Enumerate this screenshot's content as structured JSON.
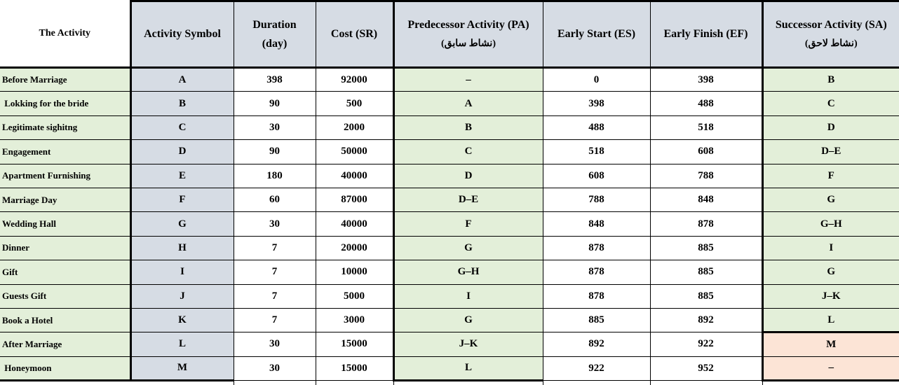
{
  "colors": {
    "cell_green": "#e3efd9",
    "cell_blue_gray": "#d6dce4",
    "cell_orange_highlight": "#fce4d6",
    "border": "#000000"
  },
  "table": {
    "columns": [
      {
        "key": "activity",
        "label": "The Activity",
        "sub": ""
      },
      {
        "key": "symbol",
        "label": "Activity Symbol",
        "sub": ""
      },
      {
        "key": "duration",
        "label": "Duration",
        "sub": "(day)"
      },
      {
        "key": "cost",
        "label": "Cost (SR)",
        "sub": ""
      },
      {
        "key": "predecessor",
        "label": "Predecessor Activity (PA)",
        "sub": "(نشاط سابق)"
      },
      {
        "key": "es",
        "label": "Early Start (ES)",
        "sub": ""
      },
      {
        "key": "ef",
        "label": "Early Finish (EF)",
        "sub": ""
      },
      {
        "key": "successor",
        "label": "Successor Activity (SA)",
        "sub": "(نشاط لاحق)"
      }
    ],
    "rows": [
      {
        "activity": "Before Marriage",
        "symbol": "A",
        "duration": "398",
        "cost": "92000",
        "predecessor": "–",
        "es": "0",
        "ef": "398",
        "successor": "B",
        "successor_highlight": false,
        "successor_thick_top": false
      },
      {
        "activity": " Lokking for the bride",
        "symbol": "B",
        "duration": "90",
        "cost": "500",
        "predecessor": "A",
        "es": "398",
        "ef": "488",
        "successor": "C",
        "successor_highlight": false,
        "successor_thick_top": false
      },
      {
        "activity": "Legitimate sighitng",
        "symbol": "C",
        "duration": "30",
        "cost": "2000",
        "predecessor": "B",
        "es": "488",
        "ef": "518",
        "successor": "D",
        "successor_highlight": false,
        "successor_thick_top": false
      },
      {
        "activity": "Engagement",
        "symbol": "D",
        "duration": "90",
        "cost": "50000",
        "predecessor": "C",
        "es": "518",
        "ef": "608",
        "successor": "D–E",
        "successor_highlight": false,
        "successor_thick_top": false
      },
      {
        "activity": "Apartment Furnishing",
        "symbol": "E",
        "duration": "180",
        "cost": "40000",
        "predecessor": "D",
        "es": "608",
        "ef": "788",
        "successor": "F",
        "successor_highlight": false,
        "successor_thick_top": false
      },
      {
        "activity": "Marriage Day",
        "symbol": "F",
        "duration": "60",
        "cost": "87000",
        "predecessor": "D–E",
        "es": "788",
        "ef": "848",
        "successor": "G",
        "successor_highlight": false,
        "successor_thick_top": false
      },
      {
        "activity": "Wedding Hall",
        "symbol": "G",
        "duration": "30",
        "cost": "40000",
        "predecessor": "F",
        "es": "848",
        "ef": "878",
        "successor": "G–H",
        "successor_highlight": false,
        "successor_thick_top": false
      },
      {
        "activity": "Dinner",
        "symbol": "H",
        "duration": "7",
        "cost": "20000",
        "predecessor": "G",
        "es": "878",
        "ef": "885",
        "successor": "I",
        "successor_highlight": false,
        "successor_thick_top": false
      },
      {
        "activity": "Gift",
        "symbol": "I",
        "duration": "7",
        "cost": "10000",
        "predecessor": "G–H",
        "es": "878",
        "ef": "885",
        "successor": "G",
        "successor_highlight": false,
        "successor_thick_top": false
      },
      {
        "activity": "Guests Gift",
        "symbol": "J",
        "duration": "7",
        "cost": "5000",
        "predecessor": "I",
        "es": "878",
        "ef": "885",
        "successor": "J–K",
        "successor_highlight": false,
        "successor_thick_top": false
      },
      {
        "activity": "Book a Hotel",
        "symbol": "K",
        "duration": "7",
        "cost": "3000",
        "predecessor": "G",
        "es": "885",
        "ef": "892",
        "successor": "L",
        "successor_highlight": false,
        "successor_thick_top": false
      },
      {
        "activity": "After Marriage",
        "symbol": "L",
        "duration": "30",
        "cost": "15000",
        "predecessor": "J–K",
        "es": "892",
        "ef": "922",
        "successor": "M",
        "successor_highlight": true,
        "successor_thick_top": true
      },
      {
        "activity": " Honeymoon",
        "symbol": "M",
        "duration": "30",
        "cost": "15000",
        "predecessor": "L",
        "es": "922",
        "ef": "952",
        "successor": "–",
        "successor_highlight": true,
        "successor_thick_top": false
      }
    ]
  }
}
